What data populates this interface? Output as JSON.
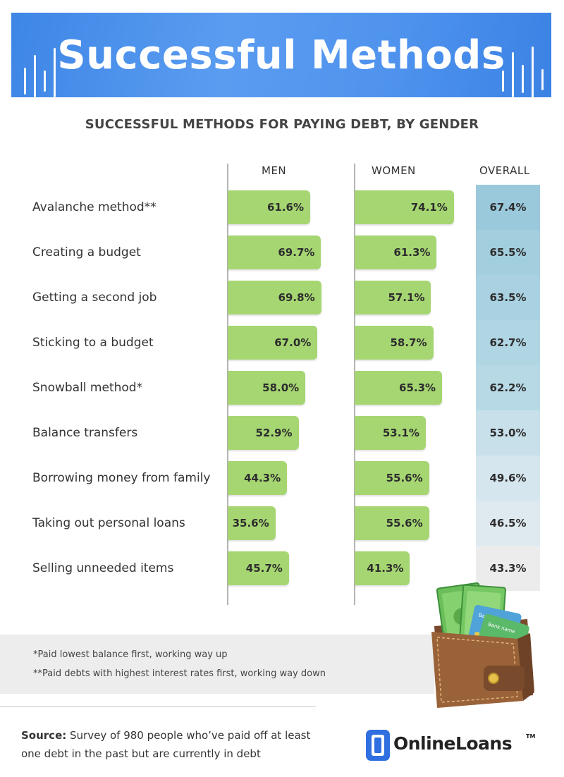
{
  "header": {
    "title": "Successful Methods"
  },
  "chart_data": {
    "type": "bar",
    "title": "SUCCESSFUL METHODS FOR PAYING DEBT, BY GENDER",
    "columns": [
      "MEN",
      "WOMEN",
      "OVERALL"
    ],
    "categories": [
      "Avalanche method**",
      "Creating a budget",
      "Getting a second job",
      "Sticking to a budget",
      "Snowball method*",
      "Balance transfers",
      "Borrowing money from family",
      "Taking out personal loans",
      "Selling unneeded items"
    ],
    "series": [
      {
        "name": "MEN",
        "values": [
          61.6,
          69.7,
          69.8,
          67.0,
          58.0,
          52.9,
          44.3,
          35.6,
          45.7
        ],
        "labels": [
          "61.6%",
          "69.7%",
          "69.8%",
          "67.0%",
          "58.0%",
          "52.9%",
          "44.3%",
          "35.6%",
          "45.7%"
        ]
      },
      {
        "name": "WOMEN",
        "values": [
          74.1,
          61.3,
          57.1,
          58.7,
          65.3,
          53.1,
          55.6,
          55.6,
          41.3
        ],
        "labels": [
          "74.1%",
          "61.3%",
          "57.1%",
          "58.7%",
          "65.3%",
          "53.1%",
          "55.6%",
          "55.6%",
          "41.3%"
        ]
      },
      {
        "name": "OVERALL",
        "values": [
          67.4,
          65.5,
          63.5,
          62.7,
          62.2,
          53.0,
          49.6,
          46.5,
          43.3
        ],
        "labels": [
          "67.4%",
          "65.5%",
          "63.5%",
          "62.7%",
          "62.2%",
          "53.0%",
          "49.6%",
          "46.5%",
          "43.3%"
        ]
      }
    ],
    "xlim": [
      0,
      100
    ],
    "colors": {
      "bar": "#a6d672",
      "overall_scale": [
        "#9ac9dc",
        "#a2cede",
        "#a9d1e1",
        "#b0d5e3",
        "#b7d8e5",
        "#c8e0ea",
        "#d5e6ee",
        "#dfeaf0",
        "#ececec"
      ]
    }
  },
  "footnotes": {
    "note1": "*Paid lowest balance first, working way up",
    "note2": "**Paid debts with highest interest rates first, working way down"
  },
  "source": {
    "label": "Source:",
    "text": " Survey of 980 people who’ve paid off at least one debt in the past but are currently in debt"
  },
  "logo": {
    "text": "OnlineLoans",
    "tm": "TM"
  },
  "wallet_card": {
    "line1": "Bank name",
    "line2": "Bank name"
  }
}
